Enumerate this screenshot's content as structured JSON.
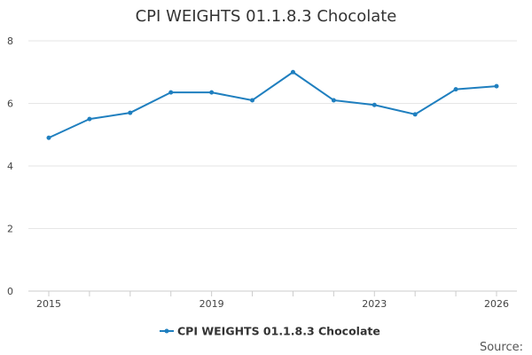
{
  "chart_data": {
    "type": "line",
    "title": "CPI WEIGHTS 01.1.8.3 Chocolate",
    "xlabel": "",
    "ylabel": "",
    "x": [
      2015,
      2016,
      2017,
      2018,
      2019,
      2020,
      2021,
      2022,
      2023,
      2024,
      2025,
      2026
    ],
    "xlim": [
      2015,
      2026
    ],
    "x_tick_labels": [
      "2015",
      "2019",
      "2023",
      "2026"
    ],
    "x_tick_values": [
      2015,
      2019,
      2023,
      2026
    ],
    "ylim": [
      0,
      8
    ],
    "y_tick_values": [
      0,
      2,
      4,
      6,
      8
    ],
    "y_tick_labels": [
      "0",
      "2",
      "4",
      "6",
      "8"
    ],
    "grid": true,
    "legend_position": "bottom-center",
    "series": [
      {
        "name": "CPI WEIGHTS 01.1.8.3 Chocolate",
        "color": "#1f7fbf",
        "values": [
          4.9,
          5.5,
          5.7,
          6.35,
          6.35,
          6.1,
          7.0,
          6.1,
          5.95,
          5.65,
          6.45,
          6.55
        ]
      }
    ],
    "source_label": "Source:"
  }
}
